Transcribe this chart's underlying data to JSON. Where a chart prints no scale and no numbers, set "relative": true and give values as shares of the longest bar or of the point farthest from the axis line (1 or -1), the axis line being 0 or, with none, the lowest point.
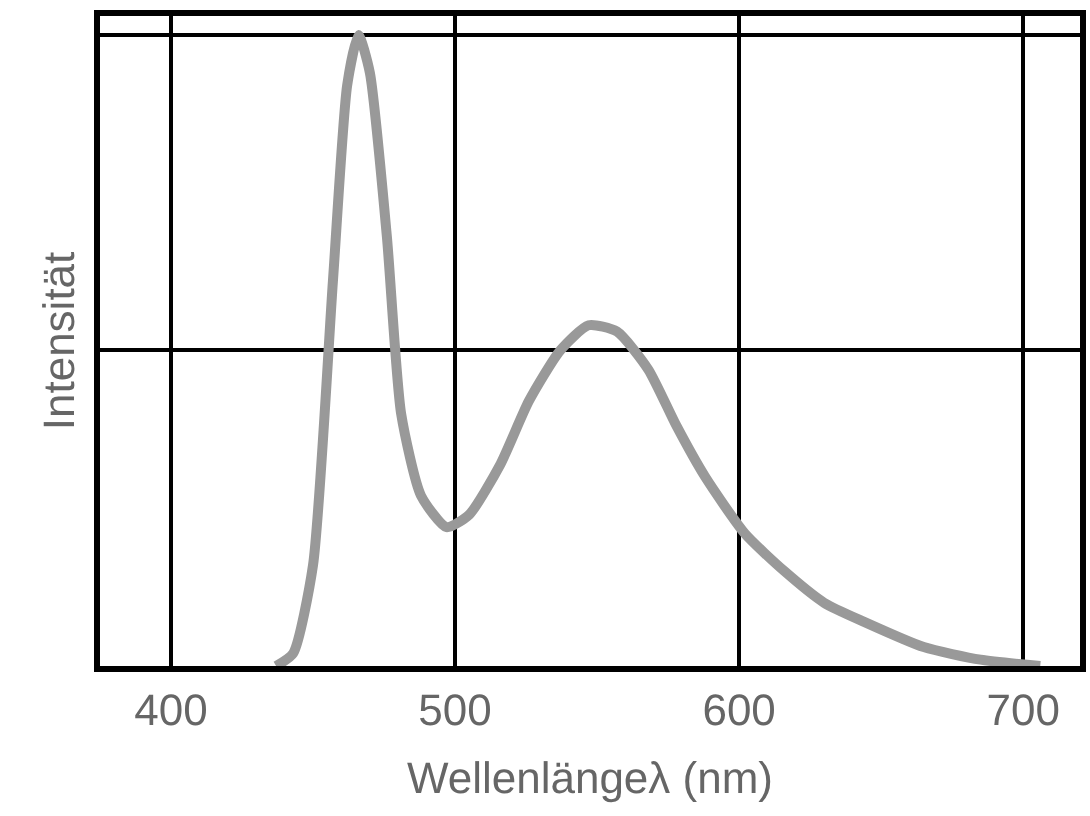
{
  "chart_data": {
    "type": "line",
    "relative": true,
    "xlabel": "Wellenlängeλ (nm)",
    "ylabel": "Intensität",
    "x": [
      437,
      443,
      450,
      457,
      462,
      466,
      470,
      476,
      481,
      488,
      497,
      505,
      516,
      526,
      537,
      547,
      557,
      568,
      578,
      588,
      602,
      616,
      630,
      644,
      665,
      685,
      706
    ],
    "series": [
      {
        "color": "#999999",
        "values": [
          0,
          0.02,
          0.16,
          0.61,
          0.92,
          1.0,
          0.94,
          0.68,
          0.4,
          0.27,
          0.22,
          0.24,
          0.32,
          0.42,
          0.5,
          0.54,
          0.53,
          0.47,
          0.38,
          0.3,
          0.21,
          0.15,
          0.1,
          0.07,
          0.03,
          0.01,
          0
        ]
      }
    ],
    "xlim": [
      375,
      720
    ],
    "xticks": [
      400,
      500,
      600,
      700
    ],
    "grid": true,
    "legend": false,
    "marker": "none",
    "line_style": "solid"
  }
}
